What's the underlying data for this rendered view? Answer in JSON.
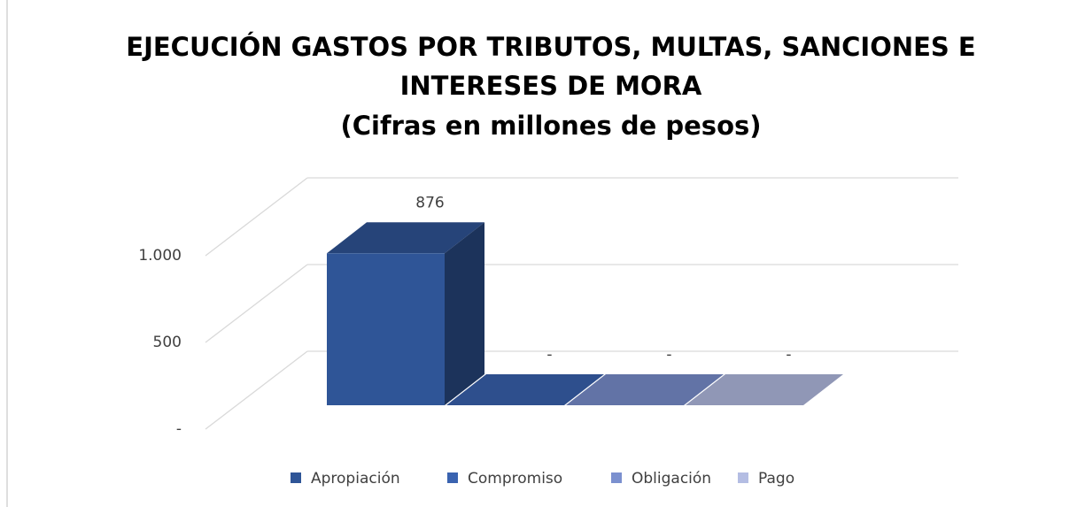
{
  "chart_data": {
    "type": "bar3d",
    "title": [
      "EJECUCIÓN GASTOS POR TRIBUTOS, MULTAS, SANCIONES E",
      "INTERESES DE MORA"
    ],
    "subtitle": "(Cifras en millones de pesos)",
    "series": [
      {
        "name": "Apropiación",
        "color": "#2f5597",
        "values": [
          876
        ],
        "value_labels": [
          "876"
        ]
      },
      {
        "name": "Compromiso",
        "color": "#3a63b0",
        "values": [
          0
        ],
        "value_labels": [
          "-"
        ]
      },
      {
        "name": "Obligación",
        "color": "#7b90cf",
        "values": [
          0
        ],
        "value_labels": [
          "-"
        ]
      },
      {
        "name": "Pago",
        "color": "#b4bde3",
        "values": [
          0
        ],
        "value_labels": [
          "-"
        ]
      }
    ],
    "ylim": [
      0,
      1000
    ],
    "yticks": [
      {
        "value": 0,
        "label": "-"
      },
      500,
      {
        "value": 1000,
        "label": "1.000"
      }
    ],
    "grid": true,
    "legend": "bottom"
  }
}
